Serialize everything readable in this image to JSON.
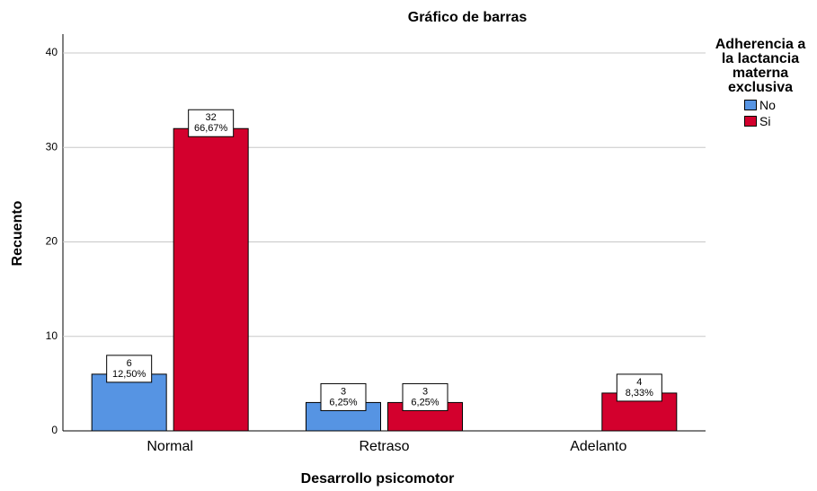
{
  "chart_data": {
    "type": "bar",
    "title": "Gráfico de barras",
    "x_label": "Desarrollo psicomotor",
    "y_label": "Recuento",
    "legend_title": "Adherencia a la lactancia materna exclusiva",
    "legend_position": "right",
    "categories": [
      "Normal",
      "Retraso",
      "Adelanto"
    ],
    "series": [
      {
        "name": "No",
        "color": "#5694e3",
        "values": [
          6,
          3,
          null
        ],
        "percent_labels": [
          "12,50%",
          "6,25%",
          null
        ]
      },
      {
        "name": "Si",
        "color": "#d3002d",
        "values": [
          32,
          3,
          4
        ],
        "percent_labels": [
          "66,67%",
          "6,25%",
          "8,33%"
        ]
      }
    ],
    "ylim": [
      0,
      42
    ],
    "yticks": [
      0,
      10,
      20,
      30,
      40
    ],
    "grid": true
  }
}
